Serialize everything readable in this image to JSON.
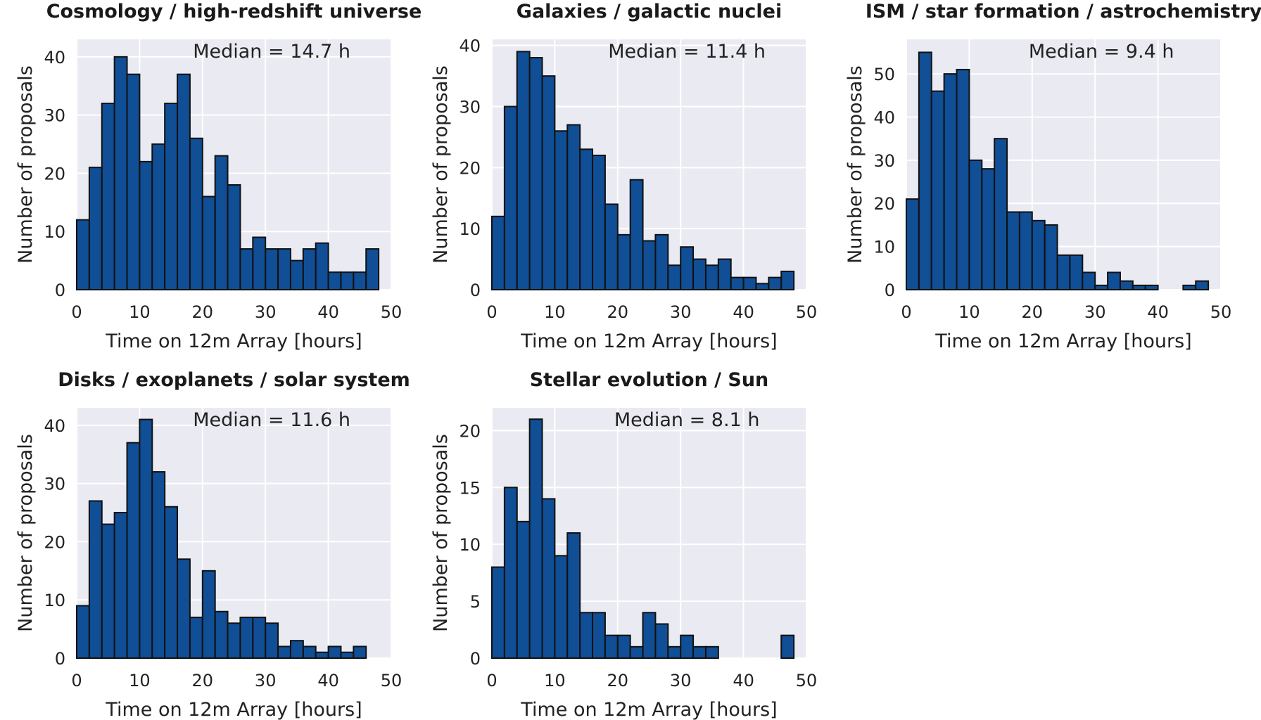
{
  "colors": {
    "bar": "#104e95",
    "background": "#eaeaf2",
    "grid": "#ffffff"
  },
  "chart_data": [
    {
      "type": "bar",
      "title": "Cosmology / high-redshift universe",
      "xlabel": "Time on 12m Array  [hours]",
      "ylabel": "Number of proposals",
      "annotation": "Median = 14.7 h",
      "bin_edges_start": 0,
      "bin_width": 2,
      "values": [
        12,
        21,
        32,
        40,
        37,
        22,
        25,
        32,
        37,
        26,
        16,
        23,
        18,
        7,
        9,
        7,
        7,
        5,
        7,
        8,
        3,
        3,
        3,
        7
      ],
      "xlim": [
        0,
        50
      ],
      "ylim": [
        0,
        43
      ],
      "xticks": [
        0,
        10,
        20,
        30,
        40,
        50
      ],
      "yticks": [
        0,
        10,
        20,
        30,
        40
      ],
      "grid": true
    },
    {
      "type": "bar",
      "title": "Galaxies / galactic nuclei",
      "xlabel": "Time on 12m Array  [hours]",
      "ylabel": "Number of proposals",
      "annotation": "Median = 11.4 h",
      "bin_edges_start": 0,
      "bin_width": 2,
      "values": [
        12,
        30,
        39,
        38,
        35,
        26,
        27,
        23,
        22,
        14,
        9,
        18,
        8,
        9,
        4,
        7,
        5,
        4,
        5,
        2,
        2,
        1,
        2,
        3
      ],
      "xlim": [
        0,
        50
      ],
      "ylim": [
        0,
        41
      ],
      "xticks": [
        0,
        10,
        20,
        30,
        40,
        50
      ],
      "yticks": [
        0,
        10,
        20,
        30,
        40
      ],
      "grid": true
    },
    {
      "type": "bar",
      "title": "ISM / star formation / astrochemistry",
      "xlabel": "Time on 12m Array  [hours]",
      "ylabel": "Number of proposals",
      "annotation": "Median = 9.4 h",
      "bin_edges_start": 0,
      "bin_width": 2,
      "values": [
        21,
        55,
        46,
        50,
        51,
        30,
        28,
        35,
        18,
        18,
        16,
        15,
        8,
        8,
        4,
        1,
        4,
        2,
        1,
        1,
        0,
        0,
        1,
        2
      ],
      "xlim": [
        0,
        50
      ],
      "ylim": [
        0,
        58
      ],
      "xticks": [
        0,
        10,
        20,
        30,
        40,
        50
      ],
      "yticks": [
        0,
        10,
        20,
        30,
        40,
        50
      ],
      "grid": true
    },
    {
      "type": "bar",
      "title": "Disks / exoplanets / solar system",
      "xlabel": "Time on 12m Array  [hours]",
      "ylabel": "Number of proposals",
      "annotation": "Median = 11.6 h",
      "bin_edges_start": 0,
      "bin_width": 2,
      "values": [
        9,
        27,
        23,
        25,
        37,
        41,
        32,
        26,
        17,
        7,
        15,
        8,
        6,
        7,
        7,
        6,
        2,
        3,
        2,
        1,
        2,
        1,
        2,
        0
      ],
      "xlim": [
        0,
        50
      ],
      "ylim": [
        0,
        43
      ],
      "xticks": [
        0,
        10,
        20,
        30,
        40,
        50
      ],
      "yticks": [
        0,
        10,
        20,
        30,
        40
      ],
      "grid": true
    },
    {
      "type": "bar",
      "title": "Stellar evolution / Sun",
      "xlabel": "Time on 12m Array  [hours]",
      "ylabel": "Number of proposals",
      "annotation": "Median = 8.1 h",
      "bin_edges_start": 0,
      "bin_width": 2,
      "values": [
        8,
        15,
        12,
        21,
        14,
        9,
        11,
        4,
        4,
        2,
        2,
        1,
        4,
        3,
        1,
        2,
        1,
        1,
        0,
        0,
        0,
        0,
        0,
        2
      ],
      "xlim": [
        0,
        50
      ],
      "ylim": [
        0,
        22
      ],
      "xticks": [
        0,
        10,
        20,
        30,
        40,
        50
      ],
      "yticks": [
        0,
        5,
        10,
        15,
        20
      ],
      "grid": true
    }
  ]
}
